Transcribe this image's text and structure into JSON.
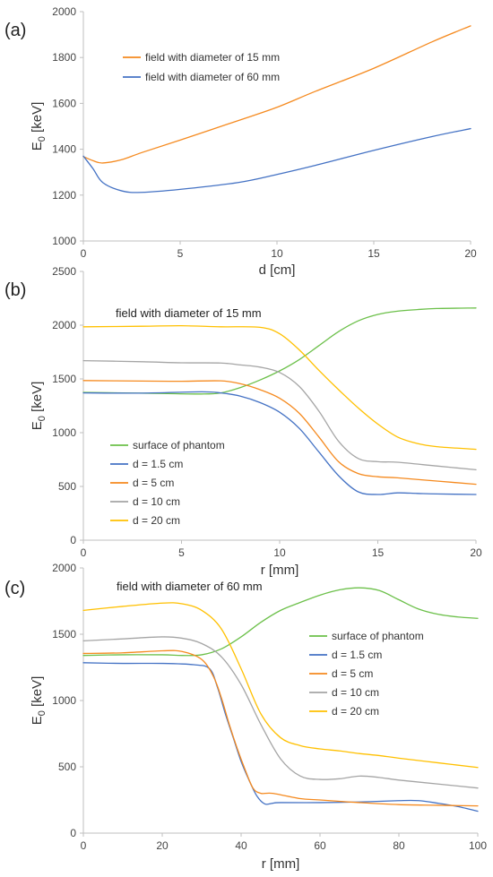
{
  "colors": {
    "orange": "#F58A1F",
    "blue": "#4472C4",
    "green": "#6CC04A",
    "gray": "#A5A5A5",
    "yellow": "#FFC000"
  },
  "chart_data": [
    {
      "type": "line",
      "panel_label": "(a)",
      "xlabel": "d [cm]",
      "ylabel_main": "E",
      "ylabel_sub": "0",
      "ylabel_tail": " [keV]",
      "xlim": [
        0,
        20
      ],
      "ylim": [
        1000,
        2000
      ],
      "xticks": [
        0,
        5,
        10,
        15,
        20
      ],
      "yticks": [
        1000,
        1200,
        1400,
        1600,
        1800,
        2000
      ],
      "legend_position": "top-left",
      "series": [
        {
          "name": "field with diameter of 15 mm",
          "color": "orange",
          "points": [
            [
              0,
              1368
            ],
            [
              0.5,
              1350
            ],
            [
              1,
              1340
            ],
            [
              2,
              1355
            ],
            [
              3,
              1385
            ],
            [
              5,
              1440
            ],
            [
              8,
              1525
            ],
            [
              10,
              1583
            ],
            [
              12,
              1653
            ],
            [
              15,
              1753
            ],
            [
              18,
              1868
            ],
            [
              20,
              1938
            ]
          ]
        },
        {
          "name": "field with diameter of 60 mm",
          "color": "blue",
          "points": [
            [
              0,
              1370
            ],
            [
              0.5,
              1315
            ],
            [
              1,
              1255
            ],
            [
              2,
              1218
            ],
            [
              3,
              1212
            ],
            [
              5,
              1225
            ],
            [
              8,
              1255
            ],
            [
              10,
              1290
            ],
            [
              12,
              1330
            ],
            [
              15,
              1395
            ],
            [
              18,
              1455
            ],
            [
              20,
              1490
            ]
          ]
        }
      ]
    },
    {
      "type": "line",
      "panel_label": "(b)",
      "annotation": "field with diameter of 15 mm",
      "xlabel": "r [mm]",
      "ylabel_main": "E",
      "ylabel_sub": "0",
      "ylabel_tail": " [keV]",
      "xlim": [
        0,
        20
      ],
      "ylim": [
        0,
        2500
      ],
      "xticks": [
        0,
        5,
        10,
        15,
        20
      ],
      "yticks": [
        0,
        500,
        1000,
        1500,
        2000,
        2500
      ],
      "legend_position": "bottom-left",
      "series": [
        {
          "name": "surface of phantom",
          "color": "green",
          "points": [
            [
              0,
              1375
            ],
            [
              2,
              1370
            ],
            [
              4,
              1365
            ],
            [
              6,
              1360
            ],
            [
              7,
              1370
            ],
            [
              8,
              1420
            ],
            [
              9,
              1490
            ],
            [
              10,
              1575
            ],
            [
              11,
              1680
            ],
            [
              12,
              1810
            ],
            [
              13,
              1940
            ],
            [
              14,
              2040
            ],
            [
              15,
              2100
            ],
            [
              16,
              2130
            ],
            [
              17,
              2145
            ],
            [
              18,
              2155
            ],
            [
              20,
              2160
            ]
          ]
        },
        {
          "name": "d = 1.5 cm",
          "color": "blue",
          "points": [
            [
              0,
              1370
            ],
            [
              3,
              1368
            ],
            [
              6,
              1380
            ],
            [
              7,
              1370
            ],
            [
              8,
              1340
            ],
            [
              9,
              1280
            ],
            [
              10,
              1190
            ],
            [
              11,
              1040
            ],
            [
              12,
              820
            ],
            [
              13,
              600
            ],
            [
              14,
              450
            ],
            [
              15,
              425
            ],
            [
              16,
              440
            ],
            [
              17,
              435
            ],
            [
              18,
              430
            ],
            [
              20,
              425
            ]
          ]
        },
        {
          "name": "d = 5 cm",
          "color": "orange",
          "points": [
            [
              0,
              1485
            ],
            [
              3,
              1480
            ],
            [
              5,
              1478
            ],
            [
              7,
              1482
            ],
            [
              8,
              1455
            ],
            [
              9,
              1400
            ],
            [
              10,
              1320
            ],
            [
              11,
              1180
            ],
            [
              12,
              960
            ],
            [
              13,
              730
            ],
            [
              14,
              620
            ],
            [
              15,
              590
            ],
            [
              16,
              580
            ],
            [
              18,
              550
            ],
            [
              20,
              520
            ]
          ]
        },
        {
          "name": "d = 10 cm",
          "color": "gray",
          "points": [
            [
              0,
              1670
            ],
            [
              3,
              1660
            ],
            [
              5,
              1650
            ],
            [
              7,
              1648
            ],
            [
              8,
              1630
            ],
            [
              9,
              1610
            ],
            [
              10,
              1560
            ],
            [
              11,
              1430
            ],
            [
              12,
              1200
            ],
            [
              13,
              920
            ],
            [
              14,
              760
            ],
            [
              15,
              730
            ],
            [
              16,
              725
            ],
            [
              18,
              690
            ],
            [
              20,
              655
            ]
          ]
        },
        {
          "name": "d = 20 cm",
          "color": "yellow",
          "points": [
            [
              0,
              1985
            ],
            [
              3,
              1990
            ],
            [
              5,
              1995
            ],
            [
              7,
              1985
            ],
            [
              9,
              1980
            ],
            [
              10,
              1920
            ],
            [
              11,
              1770
            ],
            [
              12,
              1580
            ],
            [
              13,
              1400
            ],
            [
              14,
              1230
            ],
            [
              15,
              1080
            ],
            [
              16,
              960
            ],
            [
              17,
              900
            ],
            [
              18,
              870
            ],
            [
              20,
              845
            ]
          ]
        }
      ]
    },
    {
      "type": "line",
      "panel_label": "(c)",
      "annotation": "field with diameter of 60 mm",
      "xlabel": "r [mm]",
      "ylabel_main": "E",
      "ylabel_sub": "0",
      "ylabel_tail": " [keV]",
      "xlim": [
        0,
        100
      ],
      "ylim": [
        0,
        2000
      ],
      "xticks": [
        0,
        20,
        40,
        60,
        80,
        100
      ],
      "yticks": [
        0,
        500,
        1000,
        1500,
        2000
      ],
      "legend_position": "right",
      "series": [
        {
          "name": "surface of phantom",
          "color": "green",
          "points": [
            [
              0,
              1340
            ],
            [
              10,
              1345
            ],
            [
              20,
              1345
            ],
            [
              25,
              1340
            ],
            [
              30,
              1345
            ],
            [
              35,
              1390
            ],
            [
              40,
              1480
            ],
            [
              45,
              1590
            ],
            [
              50,
              1680
            ],
            [
              55,
              1740
            ],
            [
              60,
              1795
            ],
            [
              65,
              1835
            ],
            [
              70,
              1850
            ],
            [
              75,
              1830
            ],
            [
              80,
              1760
            ],
            [
              85,
              1690
            ],
            [
              90,
              1650
            ],
            [
              95,
              1630
            ],
            [
              100,
              1620
            ]
          ]
        },
        {
          "name": "d = 1.5 cm",
          "color": "blue",
          "points": [
            [
              0,
              1285
            ],
            [
              10,
              1280
            ],
            [
              20,
              1280
            ],
            [
              28,
              1270
            ],
            [
              32,
              1240
            ],
            [
              34,
              1100
            ],
            [
              36,
              900
            ],
            [
              38,
              720
            ],
            [
              40,
              540
            ],
            [
              42,
              400
            ],
            [
              44,
              280
            ],
            [
              46,
              220
            ],
            [
              48,
              225
            ],
            [
              50,
              230
            ],
            [
              60,
              230
            ],
            [
              70,
              235
            ],
            [
              80,
              245
            ],
            [
              85,
              245
            ],
            [
              90,
              225
            ],
            [
              95,
              200
            ],
            [
              100,
              165
            ]
          ]
        },
        {
          "name": "d = 5 cm",
          "color": "orange",
          "points": [
            [
              0,
              1355
            ],
            [
              10,
              1360
            ],
            [
              20,
              1375
            ],
            [
              25,
              1370
            ],
            [
              30,
              1310
            ],
            [
              33,
              1180
            ],
            [
              35,
              1020
            ],
            [
              37,
              820
            ],
            [
              39,
              640
            ],
            [
              41,
              480
            ],
            [
              43,
              340
            ],
            [
              45,
              300
            ],
            [
              48,
              300
            ],
            [
              55,
              260
            ],
            [
              60,
              250
            ],
            [
              70,
              230
            ],
            [
              80,
              215
            ],
            [
              90,
              210
            ],
            [
              100,
              205
            ]
          ]
        },
        {
          "name": "d = 10 cm",
          "color": "gray",
          "points": [
            [
              0,
              1450
            ],
            [
              10,
              1465
            ],
            [
              20,
              1480
            ],
            [
              25,
              1470
            ],
            [
              30,
              1430
            ],
            [
              35,
              1330
            ],
            [
              40,
              1120
            ],
            [
              45,
              820
            ],
            [
              50,
              560
            ],
            [
              55,
              430
            ],
            [
              60,
              405
            ],
            [
              65,
              410
            ],
            [
              70,
              430
            ],
            [
              75,
              420
            ],
            [
              80,
              400
            ],
            [
              90,
              370
            ],
            [
              100,
              340
            ]
          ]
        },
        {
          "name": "d = 20 cm",
          "color": "yellow",
          "points": [
            [
              0,
              1680
            ],
            [
              10,
              1710
            ],
            [
              20,
              1735
            ],
            [
              25,
              1730
            ],
            [
              30,
              1680
            ],
            [
              35,
              1540
            ],
            [
              40,
              1240
            ],
            [
              45,
              900
            ],
            [
              50,
              720
            ],
            [
              55,
              660
            ],
            [
              60,
              635
            ],
            [
              65,
              620
            ],
            [
              70,
              600
            ],
            [
              75,
              585
            ],
            [
              80,
              565
            ],
            [
              90,
              530
            ],
            [
              100,
              495
            ]
          ]
        }
      ]
    }
  ]
}
